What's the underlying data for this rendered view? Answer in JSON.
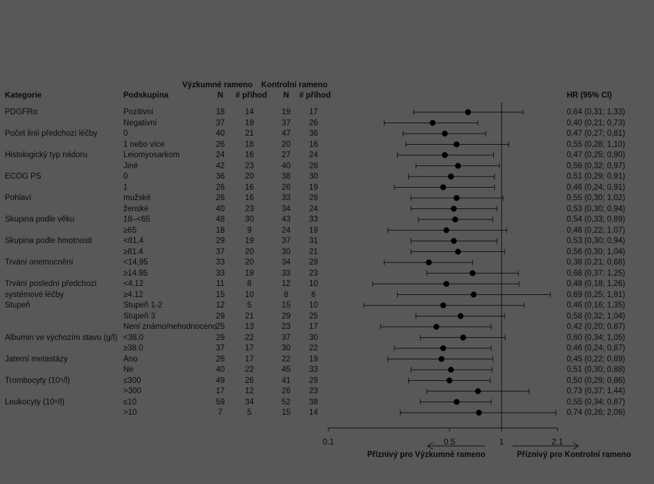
{
  "headers": {
    "kategorie": "Kategorie",
    "podskupina": "Podskupina",
    "arm_research": "Výzkumné rameno",
    "arm_control": "Kontrolní rameno",
    "n": "N",
    "events": "# příhod",
    "hr": "HR (95% CI)"
  },
  "footer": {
    "favors_research": "Příznivý pro Výzkumné rameno",
    "favors_control": "Příznivý pro Kontrolní rameno"
  },
  "chart_data": {
    "type": "forest",
    "x_scale": "log",
    "xlim": [
      0.1,
      2.1
    ],
    "xticks": [
      "0.1",
      "0.5",
      "1",
      "2.1"
    ],
    "reference_line": 1,
    "rows": [
      {
        "category": "PDGFRα",
        "subgroup": "Pozitivní",
        "n_r": "18",
        "e_r": "14",
        "n_c": "19",
        "e_c": "17",
        "hr": 0.64,
        "lo": 0.31,
        "hi": 1.33,
        "hr_text": "0,64 (0,31; 1,33)"
      },
      {
        "category": "",
        "subgroup": "Negativní",
        "n_r": "37",
        "e_r": "19",
        "n_c": "37",
        "e_c": "26",
        "hr": 0.4,
        "lo": 0.21,
        "hi": 0.73,
        "hr_text": "0,40 (0,21; 0,73)"
      },
      {
        "category": "Počet linií předchozí léčby",
        "subgroup": "0",
        "n_r": "40",
        "e_r": "21",
        "n_c": "47",
        "e_c": "36",
        "hr": 0.47,
        "lo": 0.27,
        "hi": 0.81,
        "hr_text": "0,47 (0,27; 0,81)"
      },
      {
        "category": "",
        "subgroup": "1 nebo více",
        "n_r": "26",
        "e_r": "18",
        "n_c": "20",
        "e_c": "16",
        "hr": 0.55,
        "lo": 0.28,
        "hi": 1.1,
        "hr_text": "0,55 (0,28; 1,10)"
      },
      {
        "category": "Histologický typ nádoru",
        "subgroup": "Leiomyosarkom",
        "n_r": "24",
        "e_r": "16",
        "n_c": "27",
        "e_c": "24",
        "hr": 0.47,
        "lo": 0.25,
        "hi": 0.9,
        "hr_text": "0,47 (0,25; 0,90)"
      },
      {
        "category": "",
        "subgroup": "Jiné",
        "n_r": "42",
        "e_r": "23",
        "n_c": "40",
        "e_c": "28",
        "hr": 0.56,
        "lo": 0.32,
        "hi": 0.97,
        "hr_text": "0,56 (0,32; 0,97)"
      },
      {
        "category": "ECOG PS",
        "subgroup": "0",
        "n_r": "36",
        "e_r": "20",
        "n_c": "38",
        "e_c": "30",
        "hr": 0.51,
        "lo": 0.29,
        "hi": 0.91,
        "hr_text": "0,51 (0,29; 0,91)"
      },
      {
        "category": "",
        "subgroup": "1",
        "n_r": "26",
        "e_r": "16",
        "n_c": "26",
        "e_c": "19",
        "hr": 0.46,
        "lo": 0.24,
        "hi": 0.91,
        "hr_text": "0,46 (0,24; 0,91)"
      },
      {
        "category": "Pohlaví",
        "subgroup": "mužské",
        "n_r": "26",
        "e_r": "16",
        "n_c": "33",
        "e_c": "28",
        "hr": 0.55,
        "lo": 0.3,
        "hi": 1.02,
        "hr_text": "0,55 (0,30; 1,02)"
      },
      {
        "category": "",
        "subgroup": "ženské",
        "n_r": "40",
        "e_r": "23",
        "n_c": "34",
        "e_c": "24",
        "hr": 0.53,
        "lo": 0.3,
        "hi": 0.94,
        "hr_text": "0,53 (0,30; 0,94)"
      },
      {
        "category": "Skupina podle věku",
        "subgroup": "18–<65",
        "n_r": "48",
        "e_r": "30",
        "n_c": "43",
        "e_c": "33",
        "hr": 0.54,
        "lo": 0.33,
        "hi": 0.89,
        "hr_text": "0,54 (0,33; 0,89)"
      },
      {
        "category": "",
        "subgroup": "≥65",
        "n_r": "18",
        "e_r": "9",
        "n_c": "24",
        "e_c": "19",
        "hr": 0.48,
        "lo": 0.22,
        "hi": 1.07,
        "hr_text": "0,48 (0,22; 1,07)"
      },
      {
        "category": "Skupina podle hmotnosti",
        "subgroup": "<81,4",
        "n_r": "29",
        "e_r": "19",
        "n_c": "37",
        "e_c": "31",
        "hr": 0.53,
        "lo": 0.3,
        "hi": 0.94,
        "hr_text": "0,53 (0,30; 0,94)"
      },
      {
        "category": "",
        "subgroup": "≥81.4",
        "n_r": "37",
        "e_r": "20",
        "n_c": "30",
        "e_c": "21",
        "hr": 0.56,
        "lo": 0.3,
        "hi": 1.04,
        "hr_text": "0,56 (0,30; 1,04)"
      },
      {
        "category": "Trvání onemocnění",
        "subgroup": "<14,95",
        "n_r": "33",
        "e_r": "20",
        "n_c": "34",
        "e_c": "29",
        "hr": 0.38,
        "lo": 0.21,
        "hi": 0.68,
        "hr_text": "0,38 (0,21; 0,68)"
      },
      {
        "category": "",
        "subgroup": "≥14.95",
        "n_r": "33",
        "e_r": "19",
        "n_c": "33",
        "e_c": "23",
        "hr": 0.68,
        "lo": 0.37,
        "hi": 1.25,
        "hr_text": "0,68 (0,37; 1,25)"
      },
      {
        "category": "Trvání poslední předchozí",
        "subgroup": "<4,12",
        "n_r": "11",
        "e_r": "8",
        "n_c": "12",
        "e_c": "10",
        "hr": 0.48,
        "lo": 0.18,
        "hi": 1.26,
        "hr_text": "0,48 (0,18; 1,26)"
      },
      {
        "category": "systémové léčby",
        "subgroup": "≥4.12",
        "n_r": "15",
        "e_r": "10",
        "n_c": "8",
        "e_c": "6",
        "hr": 0.69,
        "lo": 0.25,
        "hi": 1.91,
        "hr_text": "0,69 (0,25; 1,91)"
      },
      {
        "category": "Stupeň",
        "subgroup": "Stupeň 1-2",
        "n_r": "12",
        "e_r": "5",
        "n_c": "15",
        "e_c": "10",
        "hr": 0.46,
        "lo": 0.16,
        "hi": 1.35,
        "hr_text": "0,46 (0,16; 1,35)"
      },
      {
        "category": "",
        "subgroup": "Stupeň 3",
        "n_r": "29",
        "e_r": "21",
        "n_c": "29",
        "e_c": "25",
        "hr": 0.58,
        "lo": 0.32,
        "hi": 1.04,
        "hr_text": "0,58 (0,32; 1,04)"
      },
      {
        "category": "",
        "subgroup": "Není známo/nehodnoceno",
        "n_r": "25",
        "e_r": "13",
        "n_c": "23",
        "e_c": "17",
        "hr": 0.42,
        "lo": 0.2,
        "hi": 0.87,
        "hr_text": "0,42 (0,20; 0,87)"
      },
      {
        "category": "Albumin ve výchozím stavu (g/l)",
        "subgroup": "<38,0",
        "n_r": "29",
        "e_r": "22",
        "n_c": "37",
        "e_c": "30",
        "hr": 0.6,
        "lo": 0.34,
        "hi": 1.05,
        "hr_text": "0,60 (0,34; 1,05)"
      },
      {
        "category": "",
        "subgroup": "≥38.0",
        "n_r": "37",
        "e_r": "17",
        "n_c": "30",
        "e_c": "22",
        "hr": 0.46,
        "lo": 0.24,
        "hi": 0.87,
        "hr_text": "0,46 (0,24; 0,87)"
      },
      {
        "category": "Jaterní metastázy",
        "subgroup": "Ano",
        "n_r": "26",
        "e_r": "17",
        "n_c": "22",
        "e_c": "19",
        "hr": 0.45,
        "lo": 0.22,
        "hi": 0.89,
        "hr_text": "0,45 (0,22; 0,89)"
      },
      {
        "category": "",
        "subgroup": "Ne",
        "n_r": "40",
        "e_r": "22",
        "n_c": "45",
        "e_c": "33",
        "hr": 0.51,
        "lo": 0.3,
        "hi": 0.88,
        "hr_text": "0,51 (0,30; 0,88)"
      },
      {
        "category": "Trombocyty (10⁹/l)",
        "subgroup": "≤300",
        "n_r": "49",
        "e_r": "26",
        "n_c": "41",
        "e_c": "29",
        "hr": 0.5,
        "lo": 0.29,
        "hi": 0.86,
        "hr_text": "0,50 (0,29; 0,86)"
      },
      {
        "category": "",
        "subgroup": ">300",
        "n_r": "17",
        "e_r": "12",
        "n_c": "26",
        "e_c": "23",
        "hr": 0.73,
        "lo": 0.37,
        "hi": 1.44,
        "hr_text": "0,73 (0,37; 1,44)"
      },
      {
        "category": "Leukocyty (10⁹/l)",
        "subgroup": "≤10",
        "n_r": "59",
        "e_r": "34",
        "n_c": "52",
        "e_c": "38",
        "hr": 0.55,
        "lo": 0.34,
        "hi": 0.87,
        "hr_text": "0,55 (0,34; 0,87)"
      },
      {
        "category": "",
        "subgroup": ">10",
        "n_r": "7",
        "e_r": "5",
        "n_c": "15",
        "e_c": "14",
        "hr": 0.74,
        "lo": 0.26,
        "hi": 2.06,
        "hr_text": "0,74 (0,26; 2,06)"
      }
    ]
  }
}
